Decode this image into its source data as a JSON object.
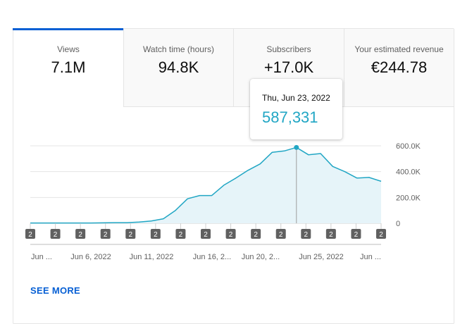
{
  "tabs": [
    {
      "label": "Views",
      "value": "7.1M"
    },
    {
      "label": "Watch time (hours)",
      "value": "94.8K"
    },
    {
      "label": "Subscribers",
      "value": "+17.0K"
    },
    {
      "label": "Your estimated revenue",
      "value": "€244.78"
    }
  ],
  "tooltip": {
    "date": "Thu, Jun 23, 2022",
    "value": "587,331"
  },
  "see_more_label": "SEE MORE",
  "colors": {
    "accent": "#065fd4",
    "series": "#21a6c4",
    "area": "#e6f4f9"
  },
  "chart_data": {
    "type": "area",
    "y_tick_labels": [
      "600.0K",
      "400.0K",
      "200.0K",
      "0"
    ],
    "ylim": [
      0,
      600000
    ],
    "x_tick_labels": [
      "Jun ...",
      "Jun 6, 2022",
      "Jun 11, 2022",
      "Jun 16, 2...",
      "Jun 20, 2...",
      "Jun 25, 2022",
      "Jun ..."
    ],
    "x": [
      1,
      2,
      3,
      4,
      5,
      6,
      7,
      8,
      9,
      10,
      11,
      12,
      13,
      14,
      15,
      16,
      17,
      18,
      19,
      20,
      21,
      22,
      23,
      24,
      25,
      26,
      27,
      28,
      29,
      30
    ],
    "values": [
      2000,
      2000,
      2000,
      2000,
      2000,
      2000,
      3000,
      5000,
      5000,
      10000,
      18000,
      35000,
      100000,
      190000,
      215000,
      215000,
      295000,
      350000,
      410000,
      460000,
      550000,
      560000,
      587331,
      530000,
      540000,
      440000,
      400000,
      350000,
      355000,
      325000
    ],
    "highlight_index": 22,
    "marker_badge": "2",
    "marker_count": 15
  }
}
